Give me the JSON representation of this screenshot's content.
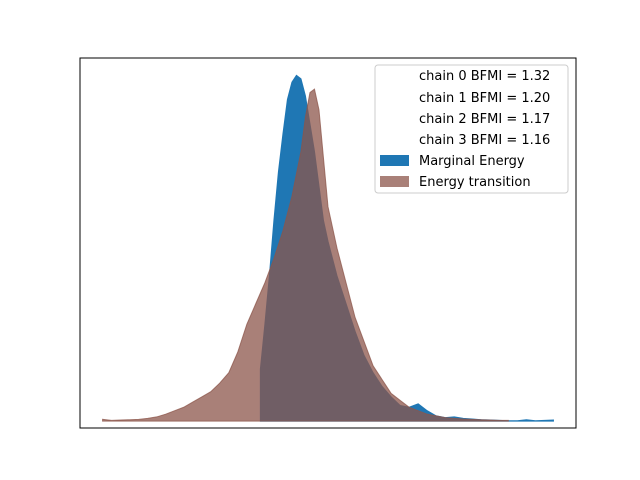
{
  "chart_data": {
    "type": "area",
    "title": "",
    "xlabel": "",
    "ylabel": "",
    "xlim": [
      -0.5,
      10.5
    ],
    "ylim": [
      -0.02,
      1.05
    ],
    "xticks": [],
    "yticks": [],
    "grid": false,
    "legend_position": "top-right",
    "legend": [
      {
        "label": "chain  0 BFMI = 1.32",
        "type": "text"
      },
      {
        "label": "chain  1 BFMI = 1.20",
        "type": "text"
      },
      {
        "label": "chain  2 BFMI = 1.17",
        "type": "text"
      },
      {
        "label": "chain  3 BFMI = 1.16",
        "type": "text"
      },
      {
        "label": "Marginal Energy",
        "type": "patch",
        "color": "#1f77b4"
      },
      {
        "label": "Energy transition",
        "type": "patch",
        "color": "#8c564b"
      }
    ],
    "series": [
      {
        "name": "Marginal Energy",
        "color": "#1f77b4",
        "alpha": 1.0,
        "x": [
          3.5,
          3.5,
          3.6,
          3.7,
          3.8,
          3.9,
          4.0,
          4.1,
          4.2,
          4.3,
          4.4,
          4.5,
          4.6,
          4.7,
          4.8,
          4.9,
          5.0,
          5.2,
          5.4,
          5.6,
          5.8,
          6.0,
          6.2,
          6.4,
          6.6,
          6.8,
          7.0,
          7.2,
          7.4,
          7.6,
          7.8,
          8.0,
          8.2,
          8.4,
          8.6,
          8.8,
          9.0,
          9.2,
          9.4,
          9.6,
          9.8,
          10.0
        ],
        "y": [
          0.0,
          0.15,
          0.28,
          0.42,
          0.58,
          0.72,
          0.83,
          0.93,
          0.98,
          1.0,
          0.99,
          0.94,
          0.86,
          0.78,
          0.68,
          0.58,
          0.52,
          0.42,
          0.34,
          0.26,
          0.19,
          0.14,
          0.1,
          0.07,
          0.045,
          0.04,
          0.05,
          0.03,
          0.015,
          0.01,
          0.012,
          0.008,
          0.006,
          0.004,
          0.003,
          0.002,
          0.001,
          0.001,
          0.004,
          0.001,
          0.002,
          0.003
        ]
      },
      {
        "name": "Energy transition",
        "color": "#8c564b",
        "alpha": 0.75,
        "x": [
          0.0,
          0.2,
          0.4,
          0.6,
          0.8,
          1.0,
          1.2,
          1.4,
          1.6,
          1.8,
          2.0,
          2.2,
          2.4,
          2.6,
          2.8,
          3.0,
          3.2,
          3.4,
          3.6,
          3.8,
          4.0,
          4.2,
          4.4,
          4.5,
          4.6,
          4.7,
          4.8,
          4.9,
          5.0,
          5.2,
          5.4,
          5.6,
          5.8,
          6.0,
          6.2,
          6.4,
          6.6,
          6.8,
          7.0,
          7.2,
          7.4,
          7.6,
          7.8,
          8.0,
          8.2,
          8.4,
          8.6,
          8.8,
          9.0
        ],
        "y": [
          0.005,
          0.002,
          0.003,
          0.004,
          0.005,
          0.008,
          0.012,
          0.02,
          0.03,
          0.04,
          0.055,
          0.07,
          0.085,
          0.11,
          0.14,
          0.2,
          0.28,
          0.34,
          0.4,
          0.47,
          0.55,
          0.65,
          0.78,
          0.88,
          0.95,
          0.96,
          0.9,
          0.76,
          0.62,
          0.5,
          0.4,
          0.3,
          0.23,
          0.16,
          0.12,
          0.08,
          0.06,
          0.04,
          0.03,
          0.02,
          0.015,
          0.01,
          0.008,
          0.006,
          0.005,
          0.004,
          0.003,
          0.002,
          0.002
        ]
      }
    ]
  }
}
